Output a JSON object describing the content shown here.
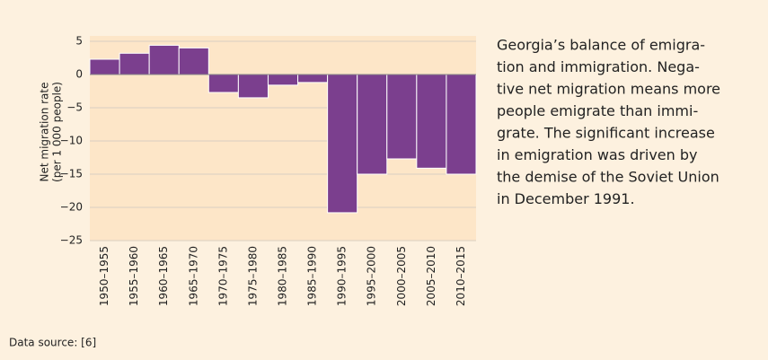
{
  "chart_data": {
    "type": "bar",
    "ylabel": [
      "Net migration rate",
      "(per 1 000 people)"
    ],
    "categories": [
      "1950–1955",
      "1955–1960",
      "1960–1965",
      "1965–1970",
      "1970–1975",
      "1975–1980",
      "1980–1985",
      "1985–1990",
      "1990–1995",
      "1995–2000",
      "2000–2005",
      "2005–2010",
      "2010–2015"
    ],
    "values": [
      2.3,
      3.2,
      4.4,
      4.0,
      -2.7,
      -3.5,
      -1.6,
      -1.2,
      -20.8,
      -15.0,
      -12.7,
      -14.1,
      -15.0
    ],
    "color": "#7b3f8e",
    "ylim": [
      -25,
      5
    ],
    "yticks": [
      5,
      0,
      {
        "value": -5,
        "label": "−5"
      },
      {
        "value": -10,
        "label": "−10"
      },
      {
        "value": -15,
        "label": "−15"
      },
      {
        "value": -20,
        "label": "−20"
      },
      {
        "value": -25,
        "label": "−25"
      }
    ],
    "grid": true,
    "caption": [
      "Georgia’s balance of emigra-",
      "tion and immigration. Nega-",
      "tive net migration means more",
      "people emigrate than immi-",
      "grate. The significant increase",
      "in emigration was driven by",
      "the demise of the Soviet Union",
      "in December 1991."
    ],
    "source": "Data source: [6]"
  }
}
